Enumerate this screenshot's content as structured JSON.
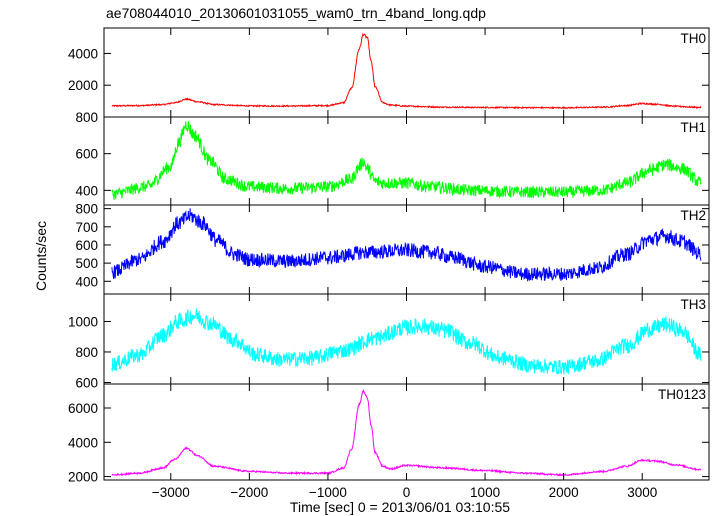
{
  "chart_data": {
    "type": "line",
    "title": "ae708044010_20130601031055_wam0_trn_4band_long.qdp",
    "xlabel": "Time [sec] 0 = 2013/06/01 03:10:55",
    "ylabel": "Counts/sec",
    "xlim": [
      -3850,
      3850
    ],
    "xticks": [
      -3000,
      -2000,
      -1000,
      0,
      1000,
      2000,
      3000
    ],
    "xtick_labels": [
      "−3000",
      "−2000",
      "−1000",
      "0",
      "1000",
      "2000",
      "3000"
    ],
    "grid": false,
    "panels": [
      {
        "name": "TH0",
        "color": "#ff0000",
        "ylim": [
          0,
          5600
        ],
        "yticks": [
          2000,
          4000
        ],
        "ytick_labels": [
          "2000",
          "4000"
        ],
        "noise": 40,
        "x": [
          -3750,
          -3400,
          -3100,
          -2950,
          -2800,
          -2650,
          -2450,
          -2000,
          -1500,
          -1000,
          -800,
          -700,
          -600,
          -550,
          -500,
          -450,
          -400,
          -300,
          -200,
          0,
          500,
          1000,
          1500,
          2000,
          2500,
          2800,
          3000,
          3200,
          3400,
          3750
        ],
        "y": [
          700,
          720,
          780,
          900,
          1120,
          950,
          780,
          700,
          690,
          720,
          900,
          1800,
          4300,
          5200,
          5000,
          3500,
          1900,
          900,
          750,
          680,
          620,
          600,
          590,
          580,
          620,
          720,
          850,
          800,
          680,
          600
        ]
      },
      {
        "name": "TH1",
        "color": "#00ff00",
        "ylim": [
          320,
          800
        ],
        "yticks": [
          400,
          600,
          800
        ],
        "ytick_labels": [
          "400",
          "600",
          "800"
        ],
        "noise": 32,
        "x": [
          -3750,
          -3300,
          -3000,
          -2900,
          -2800,
          -2700,
          -2500,
          -2300,
          -2000,
          -1500,
          -1000,
          -700,
          -600,
          -550,
          -500,
          -400,
          -300,
          -100,
          0,
          300,
          800,
          1500,
          2000,
          2500,
          2800,
          3100,
          3300,
          3500,
          3750
        ],
        "y": [
          380,
          420,
          530,
          660,
          760,
          700,
          560,
          460,
          420,
          410,
          420,
          460,
          530,
          560,
          520,
          450,
          440,
          440,
          440,
          420,
          400,
          390,
          390,
          400,
          440,
          510,
          540,
          520,
          440
        ]
      },
      {
        "name": "TH2",
        "color": "#0000ff",
        "ylim": [
          330,
          820
        ],
        "yticks": [
          400,
          500,
          600,
          700,
          800
        ],
        "ytick_labels": [
          "400",
          "500",
          "600",
          "700",
          "800"
        ],
        "noise": 38,
        "x": [
          -3750,
          -3400,
          -3100,
          -2900,
          -2750,
          -2600,
          -2400,
          -2200,
          -2000,
          -1500,
          -1000,
          -500,
          0,
          300,
          600,
          1000,
          1500,
          2000,
          2400,
          2800,
          3100,
          3300,
          3500,
          3750
        ],
        "y": [
          450,
          520,
          620,
          720,
          760,
          720,
          620,
          550,
          520,
          510,
          530,
          560,
          570,
          560,
          530,
          480,
          440,
          440,
          470,
          550,
          630,
          650,
          620,
          550
        ]
      },
      {
        "name": "TH3",
        "color": "#00ffff",
        "ylim": [
          590,
          1180
        ],
        "yticks": [
          600,
          800,
          1000
        ],
        "ytick_labels": [
          "600",
          "800",
          "1000"
        ],
        "noise": 50,
        "x": [
          -3750,
          -3400,
          -3100,
          -2900,
          -2700,
          -2500,
          -2200,
          -1900,
          -1600,
          -1200,
          -800,
          -400,
          0,
          200,
          500,
          800,
          1200,
          1600,
          2000,
          2400,
          2800,
          3100,
          3300,
          3500,
          3750
        ],
        "y": [
          720,
          780,
          910,
          1000,
          1040,
          990,
          880,
          780,
          750,
          760,
          810,
          890,
          960,
          970,
          940,
          860,
          760,
          710,
          700,
          740,
          840,
          950,
          980,
          940,
          780
        ]
      },
      {
        "name": "TH0123",
        "color": "#ff00ff",
        "ylim": [
          1800,
          7400
        ],
        "yticks": [
          2000,
          4000,
          6000
        ],
        "ytick_labels": [
          "2000",
          "4000",
          "6000"
        ],
        "noise": 45,
        "x": [
          -3750,
          -3400,
          -3100,
          -2950,
          -2800,
          -2650,
          -2450,
          -2000,
          -1500,
          -1000,
          -800,
          -700,
          -600,
          -550,
          -500,
          -450,
          -400,
          -300,
          -200,
          0,
          500,
          1000,
          1500,
          2000,
          2500,
          2800,
          3000,
          3200,
          3400,
          3750
        ],
        "y": [
          2100,
          2200,
          2500,
          3000,
          3650,
          3200,
          2600,
          2300,
          2200,
          2200,
          2500,
          3600,
          6200,
          7000,
          6600,
          5000,
          3400,
          2600,
          2450,
          2650,
          2500,
          2350,
          2200,
          2100,
          2300,
          2600,
          2950,
          2900,
          2700,
          2400
        ]
      }
    ]
  }
}
